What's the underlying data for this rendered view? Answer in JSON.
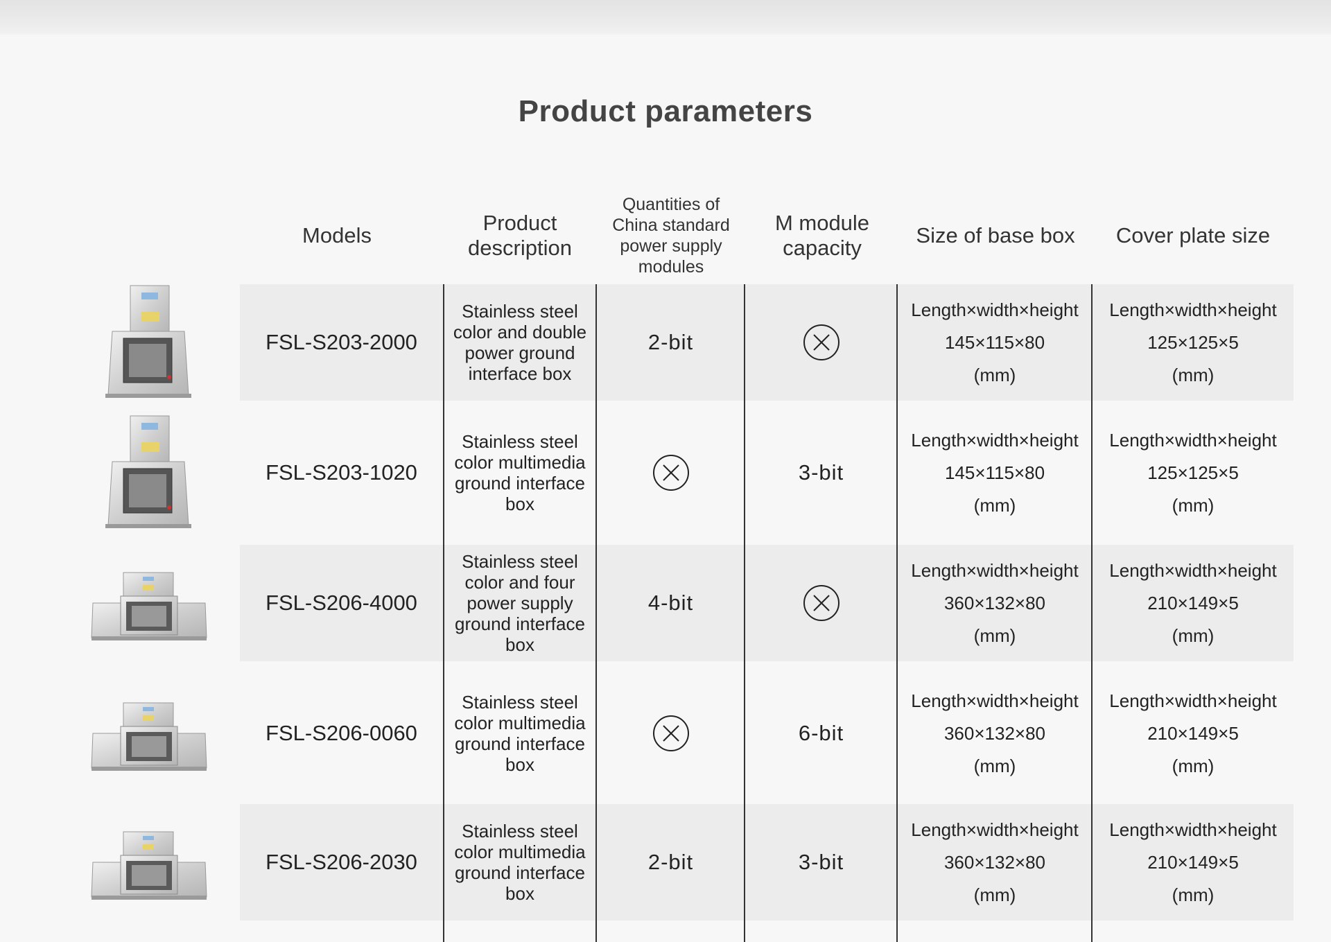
{
  "title": "Product parameters",
  "headers": {
    "models": "Models",
    "description": "Product description",
    "china_modules": "Quantities of China standard power supply modules",
    "m_module": "M module capacity",
    "base_box": "Size of base box",
    "cover_plate": "Cover plate size"
  },
  "icons": {
    "not_available": "circled-x-icon",
    "product_large": "floor-box-square-icon",
    "product_wide": "floor-box-wide-icon"
  },
  "rows": [
    {
      "model": "FSL-S203-2000",
      "description": "Stainless steel color and double power ground interface box",
      "china_modules": "2-bit",
      "m_module": null,
      "base_box": {
        "label": "Length×width×height",
        "value": "145×115×80",
        "unit": "(mm)"
      },
      "cover_plate": {
        "label": "Length×width×height",
        "value": "125×125×5",
        "unit": "(mm)"
      }
    },
    {
      "model": "FSL-S203-1020",
      "description": "Stainless steel color multimedia ground interface box",
      "china_modules": null,
      "m_module": "3-bit",
      "base_box": {
        "label": "Length×width×height",
        "value": "145×115×80",
        "unit": "(mm)"
      },
      "cover_plate": {
        "label": "Length×width×height",
        "value": "125×125×5",
        "unit": "(mm)"
      }
    },
    {
      "model": "FSL-S206-4000",
      "description": "Stainless steel color and four power supply ground interface box",
      "china_modules": "4-bit",
      "m_module": null,
      "base_box": {
        "label": "Length×width×height",
        "value": "360×132×80",
        "unit": "(mm)"
      },
      "cover_plate": {
        "label": "Length×width×height",
        "value": "210×149×5",
        "unit": "(mm)"
      }
    },
    {
      "model": "FSL-S206-0060",
      "description": "Stainless steel color multimedia ground interface box",
      "china_modules": null,
      "m_module": "6-bit",
      "base_box": {
        "label": "Length×width×height",
        "value": "360×132×80",
        "unit": "(mm)"
      },
      "cover_plate": {
        "label": "Length×width×height",
        "value": "210×149×5",
        "unit": "(mm)"
      }
    },
    {
      "model": "FSL-S206-2030",
      "description": "Stainless steel color multimedia ground interface box",
      "china_modules": "2-bit",
      "m_module": "3-bit",
      "base_box": {
        "label": "Length×width×height",
        "value": "360×132×80",
        "unit": "(mm)"
      },
      "cover_plate": {
        "label": "Length×width×height",
        "value": "210×149×5",
        "unit": "(mm)"
      }
    }
  ]
}
